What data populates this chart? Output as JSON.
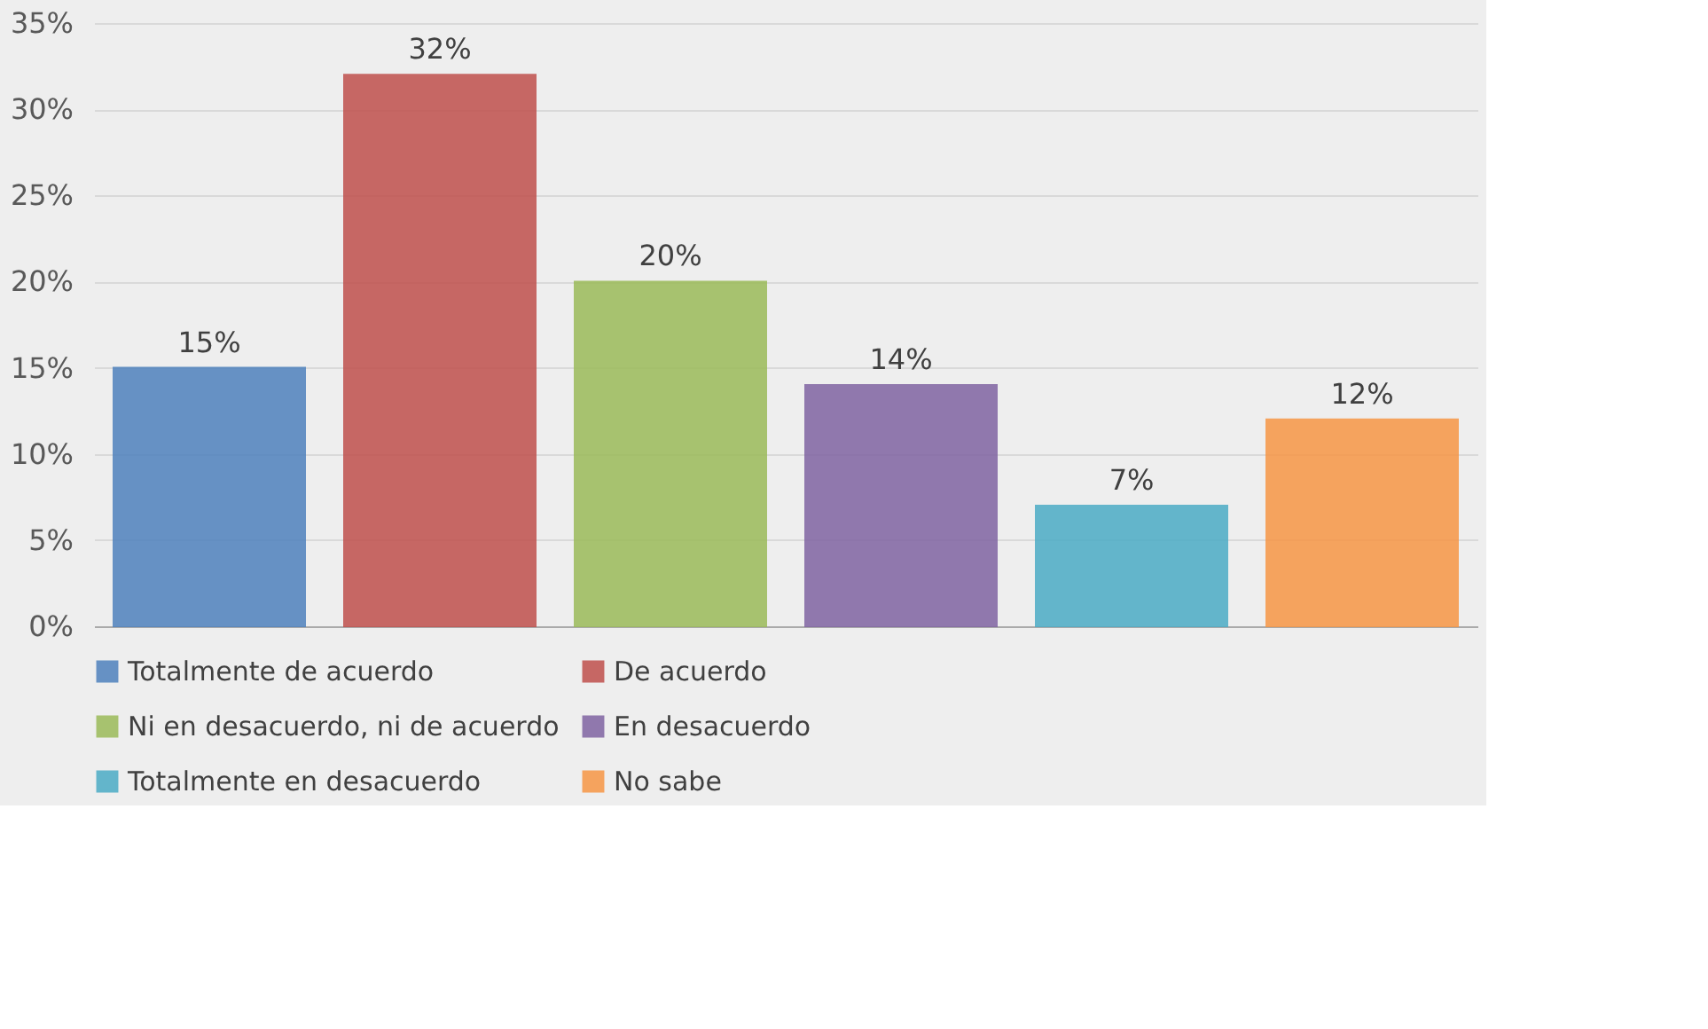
{
  "chart_data": {
    "type": "bar",
    "categories": [
      null,
      null,
      null,
      null,
      null,
      null
    ],
    "series": [
      {
        "name": "Totalmente de acuerdo",
        "color": "#4f81bd",
        "values": [
          15,
          null,
          null,
          null,
          null,
          null
        ],
        "value_labels": [
          "15%",
          null,
          null,
          null,
          null,
          null
        ]
      },
      {
        "name": "De acuerdo",
        "color": "#c0504d",
        "values": [
          null,
          32,
          null,
          null,
          null,
          null
        ],
        "value_labels": [
          null,
          "32%",
          null,
          null,
          null,
          null
        ]
      },
      {
        "name": "Ni en desacuerdo, ni de acuerdo",
        "color": "#9bbb59",
        "values": [
          null,
          null,
          20,
          null,
          null,
          null
        ],
        "value_labels": [
          null,
          null,
          "20%",
          null,
          null,
          null
        ]
      },
      {
        "name": "En desacuerdo",
        "color": "#8064a2",
        "values": [
          null,
          null,
          null,
          14,
          null,
          null
        ],
        "value_labels": [
          null,
          null,
          null,
          "14%",
          null,
          null
        ]
      },
      {
        "name": "Totalmente en desacuerdo",
        "color": "#4bacc6",
        "values": [
          null,
          null,
          null,
          null,
          7,
          null
        ],
        "value_labels": [
          null,
          null,
          null,
          null,
          "7%",
          null
        ]
      },
      {
        "name": "No sabe",
        "color": "#f79646",
        "values": [
          null,
          null,
          null,
          null,
          null,
          12
        ],
        "value_labels": [
          null,
          null,
          null,
          null,
          null,
          "12%"
        ]
      }
    ],
    "ylim": [
      0,
      35
    ],
    "yticks": [
      {
        "value": 0,
        "label": "0%"
      },
      {
        "value": 5,
        "label": "5%"
      },
      {
        "value": 10,
        "label": "10%"
      },
      {
        "value": 15,
        "label": "15%"
      },
      {
        "value": 20,
        "label": "20%"
      },
      {
        "value": 25,
        "label": "25%"
      },
      {
        "value": 30,
        "label": "30%"
      },
      {
        "value": 35,
        "label": "35%"
      }
    ],
    "grid": "y",
    "legend": "bottom",
    "tick_labels": "y"
  }
}
